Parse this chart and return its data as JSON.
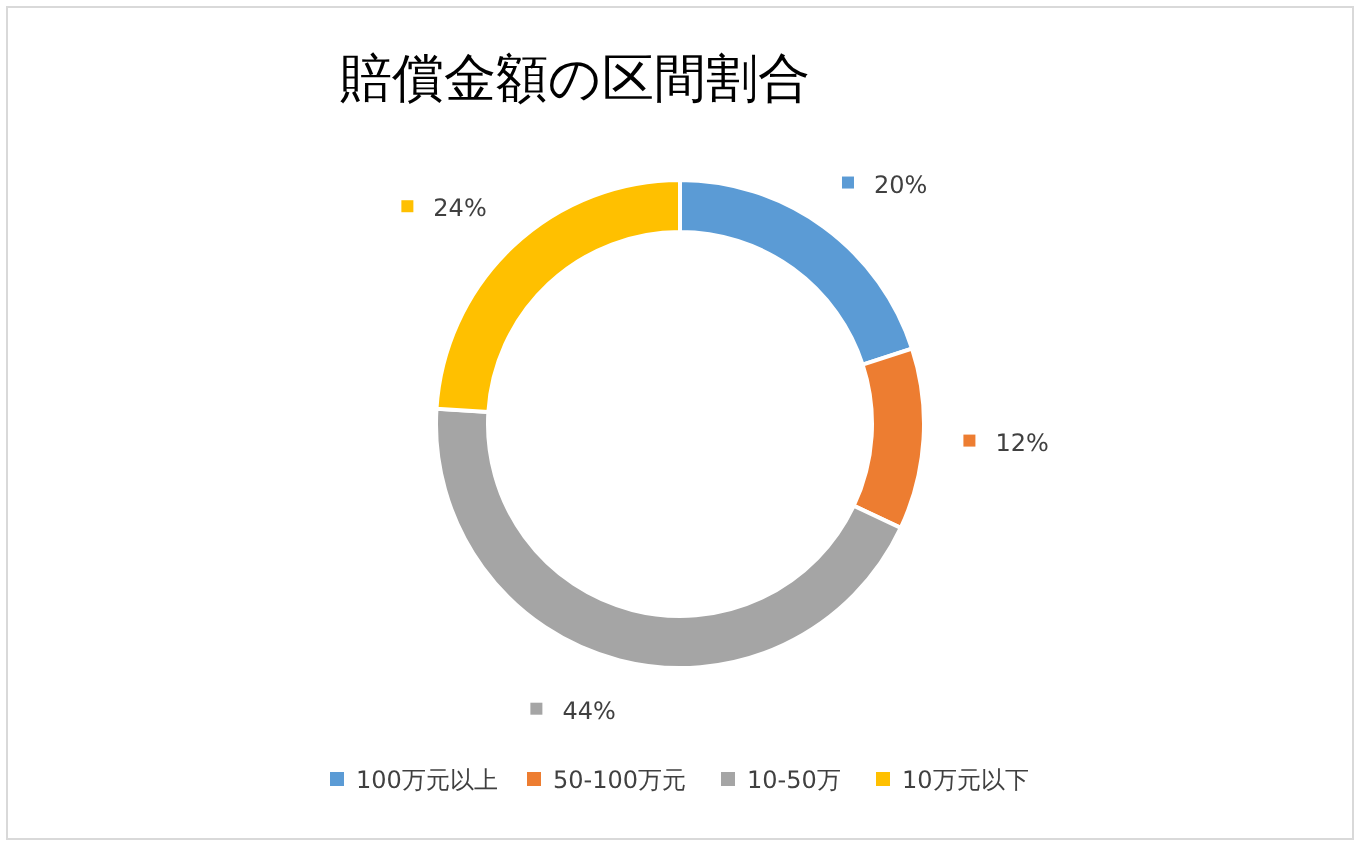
{
  "chart_data": {
    "type": "donut",
    "title": "賠償金額の区間割合",
    "categories": [
      "100万元以上",
      "50-100万元",
      "10-50万",
      "10万元以下"
    ],
    "values": [
      20,
      12,
      44,
      24
    ],
    "colors": [
      "#5b9bd5",
      "#ed7d31",
      "#a5a5a5",
      "#ffc000"
    ],
    "value_labels": [
      "20%",
      "12%",
      "44%",
      "24%"
    ],
    "legend": "bottom"
  }
}
